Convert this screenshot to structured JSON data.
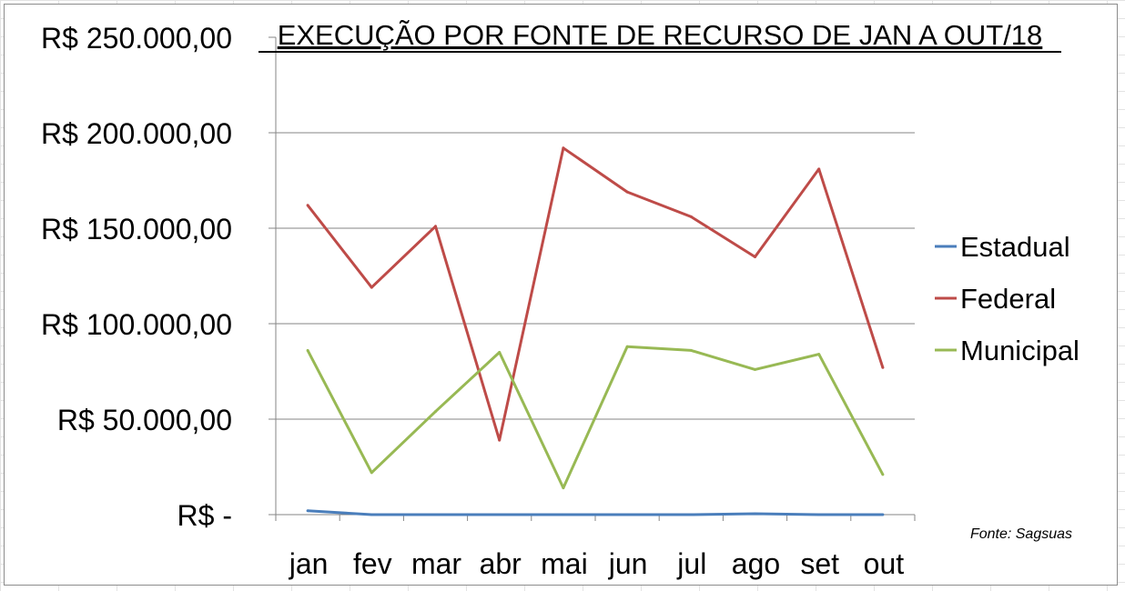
{
  "chart_data": {
    "type": "line",
    "title": "EXECUÇÃO POR FONTE DE RECURSO DE JAN A OUT/18",
    "xlabel": "",
    "ylabel": "",
    "categories": [
      "jan",
      "fev",
      "mar",
      "abr",
      "mai",
      "jun",
      "jul",
      "ago",
      "set",
      "out"
    ],
    "ylim": [
      0,
      250000
    ],
    "yticks": [
      0,
      50000,
      100000,
      150000,
      200000,
      250000
    ],
    "ytick_labels": [
      "R$ -",
      "R$ 50.000,00",
      "R$ 100.000,00",
      "R$ 150.000,00",
      "R$ 200.000,00",
      "R$ 250.000,00"
    ],
    "grid": true,
    "legend_position": "right",
    "series": [
      {
        "name": "Estadual",
        "color": "#4a7ebb",
        "values": [
          2000,
          0,
          0,
          0,
          0,
          0,
          0,
          500,
          0,
          0
        ]
      },
      {
        "name": "Federal",
        "color": "#be4b48",
        "values": [
          162000,
          119000,
          151000,
          39000,
          192000,
          169000,
          156000,
          135000,
          181000,
          77000
        ]
      },
      {
        "name": "Municipal",
        "color": "#98b954",
        "values": [
          86000,
          22000,
          54000,
          85000,
          14000,
          88000,
          86000,
          76000,
          84000,
          21000
        ]
      }
    ],
    "source_note": "Fonte: Sagsuas"
  }
}
